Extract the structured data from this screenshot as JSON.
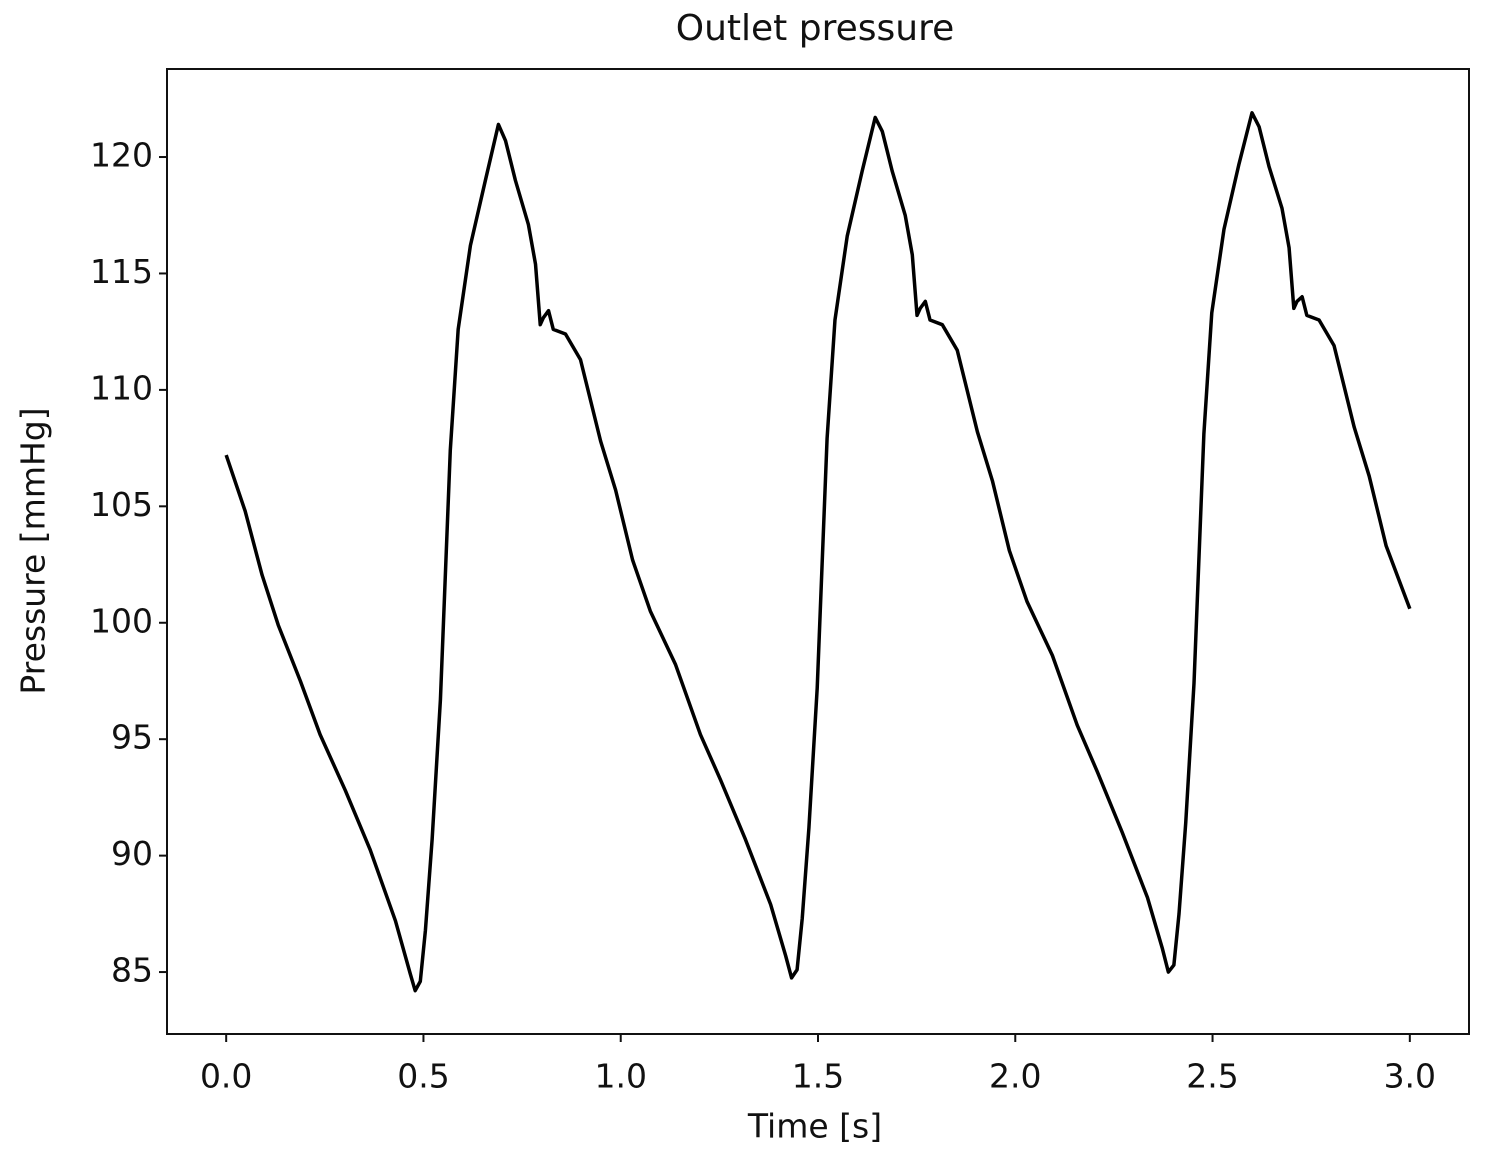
{
  "chart_data": {
    "type": "line",
    "title": "Outlet pressure",
    "x_label": "Time [s]",
    "y_label": "Pressure [mmHg]",
    "x": [
      0,
      0.048,
      0.091,
      0.132,
      0.188,
      0.238,
      0.302,
      0.365,
      0.429,
      0.467,
      0.479,
      0.492,
      0.505,
      0.522,
      0.543,
      0.568,
      0.588,
      0.619,
      0.657,
      0.69,
      0.708,
      0.733,
      0.766,
      0.784,
      0.796,
      0.804,
      0.817,
      0.829,
      0.86,
      0.898,
      0.949,
      0.987,
      1.03,
      1.075,
      1.139,
      1.202,
      1.253,
      1.316,
      1.38,
      1.418,
      1.433,
      1.447,
      1.46,
      1.477,
      1.498,
      1.523,
      1.543,
      1.574,
      1.612,
      1.645,
      1.663,
      1.688,
      1.721,
      1.739,
      1.751,
      1.759,
      1.772,
      1.784,
      1.815,
      1.853,
      1.904,
      1.942,
      1.985,
      2.03,
      2.094,
      2.157,
      2.208,
      2.271,
      2.335,
      2.373,
      2.388,
      2.402,
      2.415,
      2.432,
      2.453,
      2.478,
      2.498,
      2.529,
      2.567,
      2.6,
      2.618,
      2.643,
      2.676,
      2.694,
      2.706,
      2.714,
      2.727,
      2.739,
      2.77,
      2.808,
      2.859,
      2.897,
      2.94,
      3.0
    ],
    "series": [
      {
        "name": "Outlet pressure",
        "color": "#000000",
        "values": [
          107.2,
          104.8,
          102.05,
          99.9,
          97.5,
          95.2,
          92.8,
          90.25,
          87.2,
          84.9,
          84.2,
          84.6,
          86.8,
          90.7,
          96.7,
          107.4,
          112.6,
          116.2,
          119.0,
          121.4,
          120.7,
          119.0,
          117.1,
          115.4,
          112.8,
          113.1,
          113.4,
          112.6,
          112.4,
          111.3,
          107.8,
          105.7,
          102.7,
          100.5,
          98.2,
          95.2,
          93.25,
          90.7,
          87.9,
          85.7,
          84.75,
          85.1,
          87.3,
          91.2,
          97.2,
          107.9,
          113.0,
          116.6,
          119.4,
          121.7,
          121.1,
          119.4,
          117.5,
          115.8,
          113.2,
          113.5,
          113.8,
          113.0,
          112.8,
          111.7,
          108.2,
          106.1,
          103.1,
          100.9,
          98.6,
          95.6,
          93.6,
          91.0,
          88.2,
          86.0,
          85.0,
          85.3,
          87.5,
          91.4,
          97.4,
          108.1,
          113.3,
          116.9,
          119.7,
          121.9,
          121.3,
          119.6,
          117.8,
          116.1,
          113.5,
          113.8,
          114.0,
          113.2,
          113.0,
          111.9,
          108.4,
          106.3,
          103.3,
          100.6
        ]
      }
    ],
    "xlim": [
      -0.15,
      3.15
    ],
    "ylim": [
      82.34,
      123.78
    ],
    "xticks": [
      {
        "value": 0,
        "label": "0.0"
      },
      0.5,
      {
        "value": 1,
        "label": "1.0"
      },
      1.5,
      {
        "value": 2,
        "label": "2.0"
      },
      2.5,
      {
        "value": 3,
        "label": "3.0"
      }
    ],
    "yticks": [
      85,
      90,
      95,
      100,
      105,
      110,
      115,
      120
    ],
    "grid": false
  }
}
